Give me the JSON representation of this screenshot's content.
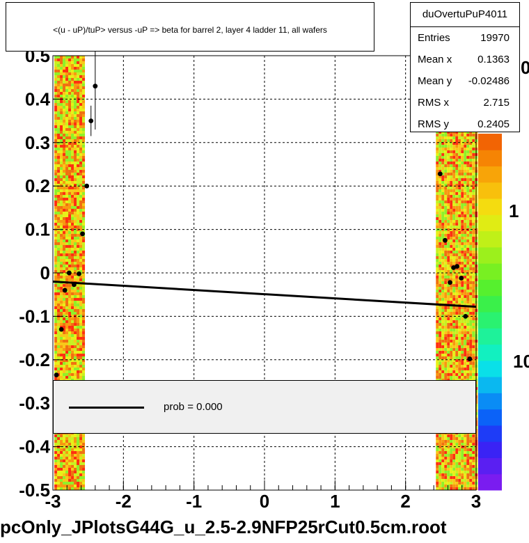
{
  "header": {
    "title": "<(u - uP)/tuP> versus  -uP => beta for barrel 2, layer 4 ladder 11, all wafers"
  },
  "stats": {
    "name": "duOvertuPuP4011",
    "rows": [
      {
        "label": "Entries",
        "value": "19970"
      },
      {
        "label": "Mean x",
        "value": "0.1363"
      },
      {
        "label": "Mean y",
        "value": "-0.02486"
      },
      {
        "label": "RMS x",
        "value": "2.715"
      },
      {
        "label": "RMS y",
        "value": "0.2405"
      }
    ]
  },
  "legend": {
    "text": "prob = 0.000"
  },
  "footer": {
    "filename": "pcOnly_JPlotsG44G_u_2.5-2.9NFP25rCut0.5cm.root"
  },
  "zaxis": {
    "labels": [
      "0",
      "1",
      "10"
    ]
  },
  "colors": {
    "fit_line": "#000000",
    "legend_bg": "#f0f0f0",
    "palette": [
      "#7a1cf0",
      "#5a1ff2",
      "#3a23f5",
      "#1e3cf7",
      "#0b62f8",
      "#0a8cf5",
      "#0ab8f0",
      "#0ae0e8",
      "#12f0c0",
      "#1ef29a",
      "#2af270",
      "#3af04a",
      "#56f02e",
      "#78f022",
      "#9cf01c",
      "#c0f018",
      "#e0ec14",
      "#f4dc10",
      "#f8c00c",
      "#f8a408",
      "#f68404",
      "#f26404"
    ]
  },
  "chart_data": {
    "type": "scatter",
    "title": "<(u - uP)/tuP> versus  -uP => beta for barrel 2, layer 4 ladder 11, all wafers",
    "xlim": [
      -3,
      3
    ],
    "ylim": [
      -0.5,
      0.5
    ],
    "x_ticks": [
      -3,
      -2,
      -1,
      0,
      1,
      2,
      3
    ],
    "y_ticks": [
      -0.5,
      -0.4,
      -0.3,
      -0.2,
      -0.1,
      0,
      0.1,
      0.2,
      0.3,
      0.4,
      0.5
    ],
    "x_tick_labels": [
      "-3",
      "-2",
      "-1",
      "0",
      "1",
      "2",
      "3"
    ],
    "y_tick_labels": [
      "-0.5",
      "-0.4",
      "-0.3",
      "-0.2",
      "-0.1",
      "0",
      "0.1",
      "0.2",
      "0.3",
      "0.4",
      "0.5"
    ],
    "grid": true,
    "series": [
      {
        "type": "profile_points",
        "points": [
          {
            "x": -2.95,
            "y": -0.235,
            "err": 0
          },
          {
            "x": -2.88,
            "y": -0.13,
            "err": 0
          },
          {
            "x": -2.83,
            "y": -0.04,
            "err": 0
          },
          {
            "x": -2.77,
            "y": 0.0,
            "err": 0
          },
          {
            "x": -2.7,
            "y": -0.027,
            "err": 0
          },
          {
            "x": -2.63,
            "y": -0.002,
            "err": 0
          },
          {
            "x": -2.58,
            "y": 0.09,
            "err": 0
          },
          {
            "x": -2.52,
            "y": 0.2,
            "err": 0
          },
          {
            "x": -2.46,
            "y": 0.35,
            "err": 0.035
          },
          {
            "x": -2.4,
            "y": 0.43,
            "err": 0.1
          },
          {
            "x": 2.49,
            "y": 0.228,
            "err": 0
          },
          {
            "x": 2.56,
            "y": 0.075,
            "err": 0
          },
          {
            "x": 2.63,
            "y": -0.022,
            "err": 0
          },
          {
            "x": 2.68,
            "y": 0.012,
            "err": 0
          },
          {
            "x": 2.73,
            "y": 0.015,
            "err": 0
          },
          {
            "x": 2.79,
            "y": -0.012,
            "err": 0
          },
          {
            "x": 2.85,
            "y": -0.1,
            "err": 0
          },
          {
            "x": 2.91,
            "y": -0.198,
            "err": 0
          }
        ]
      },
      {
        "type": "fit_line",
        "x": [
          -3,
          3
        ],
        "y": [
          -0.02,
          -0.078
        ]
      }
    ],
    "density_bands": [
      {
        "x": [
          -2.98,
          -2.56
        ],
        "y": [
          -0.5,
          0.5
        ]
      },
      {
        "x": [
          2.43,
          3.0
        ],
        "y": [
          -0.5,
          0.5
        ]
      }
    ]
  }
}
